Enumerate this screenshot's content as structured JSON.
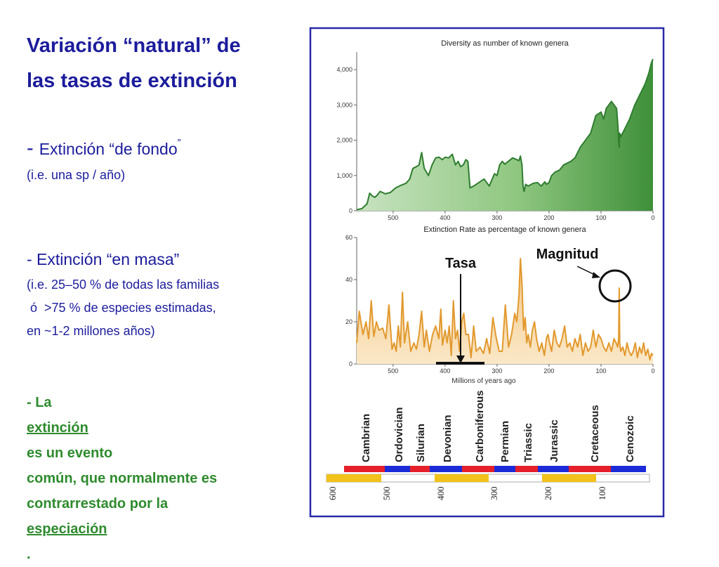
{
  "slide": {
    "title_lines": [
      "Variación “natural” de",
      "las tasas de extinción"
    ],
    "background": {
      "heading_dash": "- ",
      "heading": "Extinción “de fondo",
      "heading_end": "”",
      "note": "(i.e. una sp / año)"
    },
    "mass": {
      "heading": "- Extinción “en masa”",
      "lines": [
        "(i.e. 25–50 % de todas las familias",
        " ó  >75 % de especies estimadas,",
        "en ~1-2 millones años)"
      ]
    },
    "conclusion": {
      "l1_a": "- La ",
      "l1_u": "extinción",
      "l1_b": " es un evento",
      "l2": "común, que normalmente es",
      "l3": "contrarrestado por la",
      "l4_u": "especiación",
      "l4_b": "."
    },
    "colors": {
      "title": "#1c1c9c",
      "conclusion": "#2e8b2e",
      "frame": "#2a2aa8"
    }
  },
  "figure": {
    "annotations": {
      "tasa": "Tasa",
      "magnitud": "Magnitud"
    },
    "period_bar_colors": [
      "#e5202a",
      "#1c2bd8"
    ],
    "scale_bar_colors": [
      "#f2c21a",
      "#ffffff"
    ],
    "periods": [
      "Cambrian",
      "Ordovician",
      "Silurian",
      "Devonian",
      "Carboniferous",
      "Permian",
      "Triassic",
      "Jurassic",
      "Cretaceous",
      "Cenozoic"
    ],
    "scale_labels": [
      "600",
      "500",
      "400",
      "300",
      "200",
      "100"
    ]
  },
  "chart_data": [
    {
      "type": "area",
      "title": "Diversity as number of known genera",
      "xlabel": "",
      "ylabel": "",
      "xlim": [
        570,
        0
      ],
      "ylim": [
        0,
        4500
      ],
      "x_ticks": [
        "500",
        "400",
        "300",
        "200",
        "100",
        "0"
      ],
      "y_ticks": [
        "0",
        "1,000",
        "2,000",
        "3,000",
        "4,000"
      ],
      "color": "#2f7d2f",
      "x": [
        570,
        560,
        550,
        545,
        540,
        535,
        530,
        525,
        515,
        505,
        495,
        485,
        475,
        468,
        462,
        455,
        450,
        445,
        440,
        432,
        425,
        418,
        412,
        405,
        400,
        393,
        386,
        380,
        375,
        370,
        365,
        360,
        356,
        352,
        345,
        335,
        325,
        315,
        305,
        300,
        295,
        290,
        285,
        280,
        270,
        262,
        258,
        255,
        252,
        250,
        248,
        245,
        240,
        230,
        222,
        215,
        208,
        205,
        200,
        195,
        188,
        180,
        172,
        165,
        158,
        150,
        140,
        130,
        120,
        110,
        100,
        95,
        90,
        80,
        70,
        67,
        66,
        65,
        64,
        62,
        55,
        45,
        35,
        25,
        15,
        8,
        3,
        0
      ],
      "values": [
        30,
        60,
        200,
        500,
        420,
        380,
        450,
        550,
        480,
        520,
        650,
        720,
        780,
        900,
        1200,
        1250,
        1300,
        1650,
        1200,
        1000,
        1300,
        1500,
        1520,
        1450,
        1520,
        1500,
        1600,
        1300,
        1400,
        1250,
        1300,
        1450,
        1400,
        650,
        700,
        800,
        900,
        700,
        1050,
        1000,
        1300,
        1400,
        1320,
        1380,
        1500,
        1450,
        1420,
        1550,
        1300,
        700,
        550,
        750,
        700,
        780,
        800,
        700,
        820,
        750,
        800,
        1000,
        1100,
        1150,
        1300,
        1350,
        1400,
        1500,
        1800,
        2000,
        2200,
        2700,
        2800,
        2600,
        2900,
        3100,
        2900,
        2300,
        2000,
        1800,
        2200,
        2100,
        2300,
        2600,
        3000,
        3300,
        3600,
        3900,
        4200,
        4300
      ]
    },
    {
      "type": "area",
      "title": "Extinction Rate as percentage of known genera",
      "xlabel": "Millions of years ago",
      "ylabel": "",
      "xlim": [
        570,
        0
      ],
      "ylim": [
        0,
        60
      ],
      "x_ticks": [
        "500",
        "400",
        "300",
        "200",
        "100",
        "0"
      ],
      "y_ticks": [
        "0",
        "20",
        "40",
        "60"
      ],
      "color": "#e2992e",
      "x": [
        570,
        565,
        558,
        552,
        547,
        542,
        537,
        532,
        527,
        520,
        514,
        508,
        502,
        498,
        494,
        490,
        486,
        482,
        478,
        472,
        466,
        460,
        455,
        450,
        445,
        440,
        436,
        430,
        424,
        418,
        412,
        408,
        405,
        400,
        396,
        392,
        388,
        384,
        380,
        376,
        372,
        368,
        364,
        360,
        355,
        350,
        345,
        340,
        333,
        326,
        320,
        314,
        308,
        302,
        296,
        290,
        284,
        278,
        272,
        266,
        262,
        258,
        255,
        252,
        249,
        246,
        243,
        240,
        236,
        232,
        228,
        224,
        219,
        214,
        209,
        205,
        202,
        199,
        195,
        190,
        185,
        180,
        175,
        170,
        165,
        160,
        155,
        150,
        145,
        140,
        135,
        130,
        125,
        120,
        115,
        110,
        105,
        100,
        95,
        90,
        85,
        80,
        75,
        71,
        68,
        66,
        65,
        64,
        62,
        58,
        54,
        50,
        46,
        42,
        38,
        34,
        30,
        26,
        22,
        18,
        14,
        10,
        6,
        3,
        0
      ],
      "values": [
        10,
        25,
        14,
        20,
        12,
        30,
        13,
        20,
        16,
        17,
        12,
        28,
        7,
        10,
        6,
        18,
        8,
        34,
        10,
        20,
        6,
        10,
        7,
        14,
        25,
        8,
        16,
        6,
        14,
        18,
        12,
        26,
        9,
        16,
        10,
        18,
        4,
        30,
        12,
        16,
        6,
        20,
        24,
        14,
        14,
        3,
        18,
        6,
        8,
        5,
        12,
        5,
        22,
        13,
        6,
        6,
        28,
        8,
        14,
        24,
        20,
        32,
        50,
        38,
        16,
        22,
        10,
        14,
        8,
        16,
        20,
        12,
        6,
        10,
        4,
        12,
        14,
        10,
        6,
        16,
        10,
        8,
        12,
        18,
        8,
        10,
        6,
        12,
        8,
        14,
        4,
        10,
        6,
        8,
        16,
        8,
        14,
        12,
        8,
        6,
        10,
        6,
        12,
        10,
        8,
        12,
        36,
        10,
        6,
        8,
        4,
        10,
        6,
        4,
        6,
        10,
        3,
        8,
        5,
        10,
        4,
        7,
        2,
        5,
        4
      ]
    }
  ]
}
